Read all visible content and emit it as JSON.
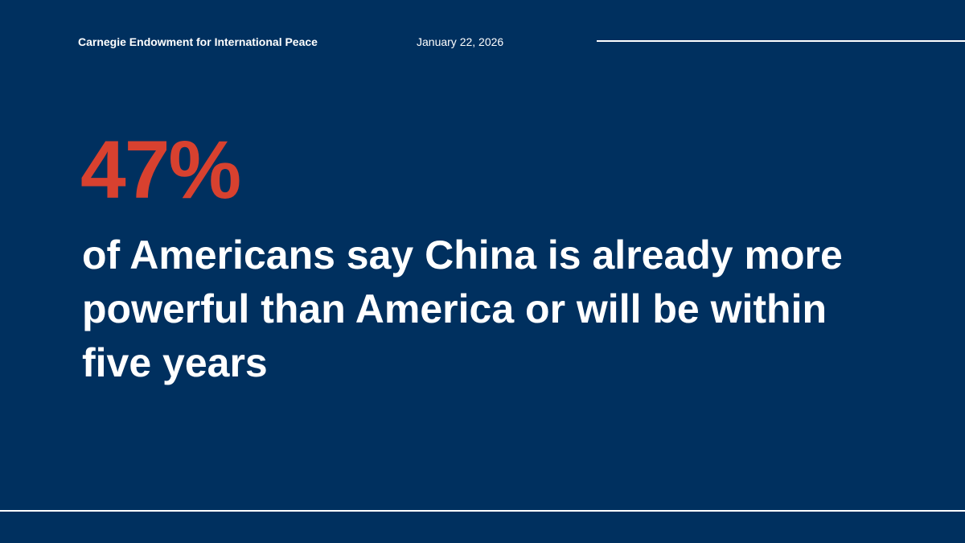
{
  "header": {
    "organization": "Carnegie Endowment for International Peace",
    "date": "January 22, 2026"
  },
  "stat": {
    "value": "47%",
    "text": "of Americans say China is already more powerful than America or will be within five years"
  }
}
